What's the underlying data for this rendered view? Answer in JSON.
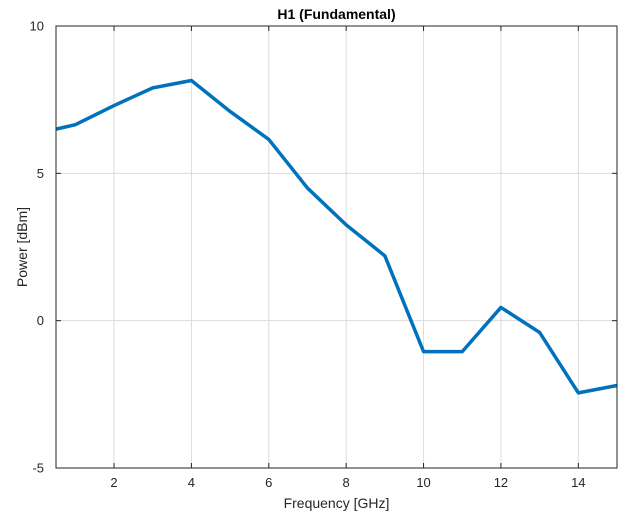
{
  "chart_data": {
    "type": "line",
    "title": "H1 (Fundamental)",
    "xlabel": "Frequency [GHz]",
    "ylabel": "Power [dBm]",
    "xlim": [
      0.5,
      15
    ],
    "ylim": [
      -5,
      10
    ],
    "x_ticks": [
      2,
      4,
      6,
      8,
      10,
      12,
      14
    ],
    "y_ticks": [
      -5,
      0,
      5,
      10
    ],
    "grid": true,
    "series": [
      {
        "x": [
          0.5,
          1,
          2,
          3,
          4,
          5,
          6,
          7,
          8,
          9,
          10,
          11,
          12,
          13,
          14,
          15
        ],
        "values": [
          6.5,
          6.65,
          7.3,
          7.9,
          8.15,
          7.1,
          6.15,
          4.5,
          3.25,
          2.2,
          -1.05,
          -1.05,
          0.45,
          -0.4,
          -2.45,
          -2.2
        ],
        "color": "#0072BD"
      }
    ]
  },
  "colors": {
    "line": "#0072BD",
    "grid": "#dcdcdc",
    "axis": "#262626"
  }
}
